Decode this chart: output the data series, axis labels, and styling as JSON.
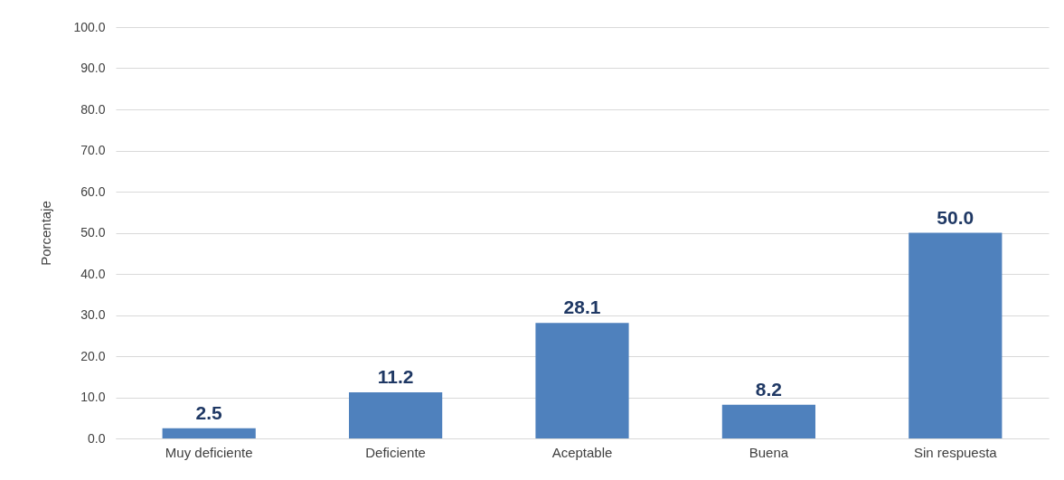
{
  "chart_data": {
    "type": "bar",
    "ylabel": "Porcentaje",
    "categories": [
      "Muy deficiente",
      "Deficiente",
      "Aceptable",
      "Buena",
      "Sin respuesta"
    ],
    "values": [
      2.5,
      11.2,
      28.1,
      8.2,
      50.0
    ],
    "value_labels": [
      "2.5",
      "11.2",
      "28.1",
      "8.2",
      "50.0"
    ],
    "color": "#4f81bd",
    "ylim": [
      0,
      100
    ],
    "yticks": [
      {
        "value": 0,
        "label": "0.0"
      },
      {
        "value": 10,
        "label": "10.0"
      },
      {
        "value": 20,
        "label": "20.0"
      },
      {
        "value": 30,
        "label": "30.0"
      },
      {
        "value": 40,
        "label": "40.0"
      },
      {
        "value": 50,
        "label": "50.0"
      },
      {
        "value": 60,
        "label": "60.0"
      },
      {
        "value": 70,
        "label": "70.0"
      },
      {
        "value": 80,
        "label": "80.0"
      },
      {
        "value": 90,
        "label": "90.0"
      },
      {
        "value": 100,
        "label": "100.0"
      }
    ],
    "grid": "y"
  }
}
